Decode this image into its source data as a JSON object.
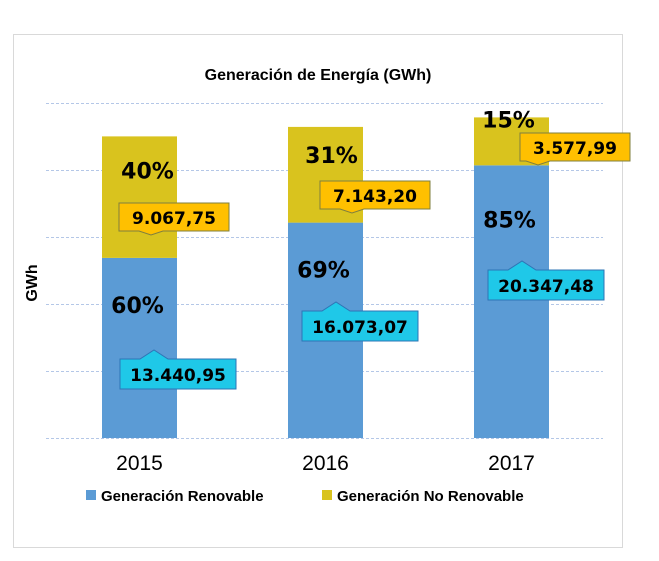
{
  "chart_data": {
    "type": "bar",
    "stacked": true,
    "title": "Generación de Energía (GWh)",
    "xlabel": "",
    "ylabel": "GWh",
    "categories": [
      "2015",
      "2016",
      "2017"
    ],
    "ylim": [
      0,
      25000
    ],
    "yticks": [
      0,
      5000,
      10000,
      15000,
      20000,
      25000
    ],
    "show_ytick_labels": false,
    "grid": true,
    "legend_position": "bottom",
    "series": [
      {
        "name": "Generación Renovable",
        "color": "#5b9bd5",
        "values": [
          13440.95,
          16073.07,
          20347.48
        ],
        "value_labels": [
          "13.440,95",
          "16.073,07",
          "20.347,48"
        ],
        "percent_labels": [
          "60%",
          "69%",
          "85%"
        ],
        "label_box_color": "#1fc8e8"
      },
      {
        "name": "Generación No Renovable",
        "color": "#d9c31e",
        "values": [
          9067.75,
          7143.2,
          3577.99
        ],
        "value_labels": [
          "9.067,75",
          "7.143,20",
          "3.577,99"
        ],
        "percent_labels": [
          "40%",
          "31%",
          "15%"
        ],
        "label_box_color": "#ffc000"
      }
    ]
  }
}
